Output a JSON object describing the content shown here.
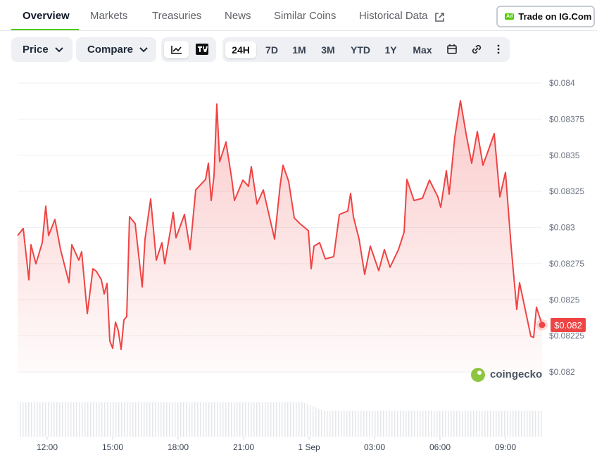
{
  "tabs": [
    "Overview",
    "Markets",
    "Treasuries",
    "News",
    "Similar Coins",
    "Historical Data"
  ],
  "ad": {
    "badge": "Ad",
    "label": "Trade on IG.Com"
  },
  "toolbar": {
    "price": "Price",
    "compare": "Compare",
    "ranges": [
      "24H",
      "7D",
      "1M",
      "3M",
      "YTD",
      "1Y",
      "Max"
    ]
  },
  "watermark": "coingecko",
  "chart_data": {
    "type": "line",
    "color": "#ef4444",
    "x": [
      10.645,
      10.903,
      11.161,
      11.258,
      11.484,
      11.774,
      11.935,
      12.065,
      12.355,
      12.613,
      13.0,
      13.129,
      13.452,
      13.581,
      13.839,
      14.097,
      14.258,
      14.484,
      14.613,
      14.742,
      14.871,
      15.0,
      15.129,
      15.258,
      15.387,
      15.516,
      15.645,
      15.774,
      16.032,
      16.355,
      16.484,
      16.742,
      17.0,
      17.258,
      17.387,
      17.645,
      17.774,
      17.903,
      18.29,
      18.548,
      18.806,
      19.258,
      19.387,
      19.516,
      19.645,
      19.774,
      19.903,
      20.194,
      20.452,
      20.581,
      20.968,
      21.226,
      21.355,
      21.613,
      21.903,
      22.161,
      22.419,
      22.677,
      22.806,
      23.065,
      23.323,
      23.581,
      23.968,
      24.097,
      24.226,
      24.484,
      24.742,
      25.129,
      25.387,
      25.774,
      25.903,
      26.032,
      26.29,
      26.548,
      26.806,
      27.194,
      27.452,
      27.71,
      28.097,
      28.355,
      28.484,
      28.806,
      29.194,
      29.516,
      29.903,
      30.032,
      30.29,
      30.419,
      30.677,
      30.935,
      31.194,
      31.452,
      31.71,
      31.968,
      32.226,
      32.484,
      32.742,
      33.0,
      33.258,
      33.516,
      33.645,
      33.903,
      34.161,
      34.29,
      34.419,
      34.677
    ],
    "values": [
      0.082944,
      0.082993,
      0.082638,
      0.082881,
      0.082749,
      0.082895,
      0.083148,
      0.082944,
      0.083056,
      0.082847,
      0.082618,
      0.082881,
      0.082774,
      0.082832,
      0.082404,
      0.082715,
      0.082696,
      0.082638,
      0.08254,
      0.082613,
      0.082214,
      0.082165,
      0.082345,
      0.082287,
      0.082156,
      0.08236,
      0.082384,
      0.083075,
      0.083027,
      0.082589,
      0.08292,
      0.083197,
      0.082774,
      0.082895,
      0.082749,
      0.082978,
      0.083105,
      0.082929,
      0.08309,
      0.082847,
      0.08326,
      0.083333,
      0.083445,
      0.083187,
      0.083358,
      0.083854,
      0.083455,
      0.083591,
      0.083343,
      0.083187,
      0.083328,
      0.083285,
      0.083421,
      0.083163,
      0.08326,
      0.08309,
      0.08292,
      0.083294,
      0.083431,
      0.083319,
      0.083066,
      0.083027,
      0.082978,
      0.082715,
      0.082871,
      0.082895,
      0.082783,
      0.082798,
      0.08309,
      0.083114,
      0.083236,
      0.083075,
      0.08292,
      0.082676,
      0.082871,
      0.082701,
      0.082847,
      0.082725,
      0.082847,
      0.082968,
      0.083333,
      0.083187,
      0.083202,
      0.083328,
      0.083212,
      0.083139,
      0.083392,
      0.083231,
      0.083625,
      0.083878,
      0.08365,
      0.083445,
      0.083664,
      0.083431,
      0.083538,
      0.08365,
      0.083212,
      0.083382,
      0.082871,
      0.082433,
      0.082618,
      0.082433,
      0.082248,
      0.082238,
      0.082448,
      0.082326
    ],
    "last_price_label": "$0.082",
    "xlim": [
      10.645,
      34.677
    ],
    "xticks": [
      {
        "value": 12,
        "label": "12:00"
      },
      {
        "value": 15,
        "label": "15:00"
      },
      {
        "value": 18,
        "label": "18:00"
      },
      {
        "value": 21,
        "label": "21:00"
      },
      {
        "value": 24,
        "label": "1 Sep"
      },
      {
        "value": 27,
        "label": "03:00"
      },
      {
        "value": 30,
        "label": "06:00"
      },
      {
        "value": 33,
        "label": "09:00"
      }
    ],
    "ylim": [
      0.082,
      0.084
    ],
    "yticks": [
      {
        "value": 0.082,
        "label": "$0.082"
      },
      {
        "value": 0.08225,
        "label": "$0.08225"
      },
      {
        "value": 0.0825,
        "label": "$0.0825"
      },
      {
        "value": 0.08275,
        "label": "$0.08275"
      },
      {
        "value": 0.083,
        "label": "$0.083"
      },
      {
        "value": 0.08325,
        "label": "$0.08325"
      },
      {
        "value": 0.0835,
        "label": "$0.0835"
      },
      {
        "value": 0.08375,
        "label": "$0.08375"
      },
      {
        "value": 0.084,
        "label": "$0.084"
      }
    ],
    "grid": true
  }
}
